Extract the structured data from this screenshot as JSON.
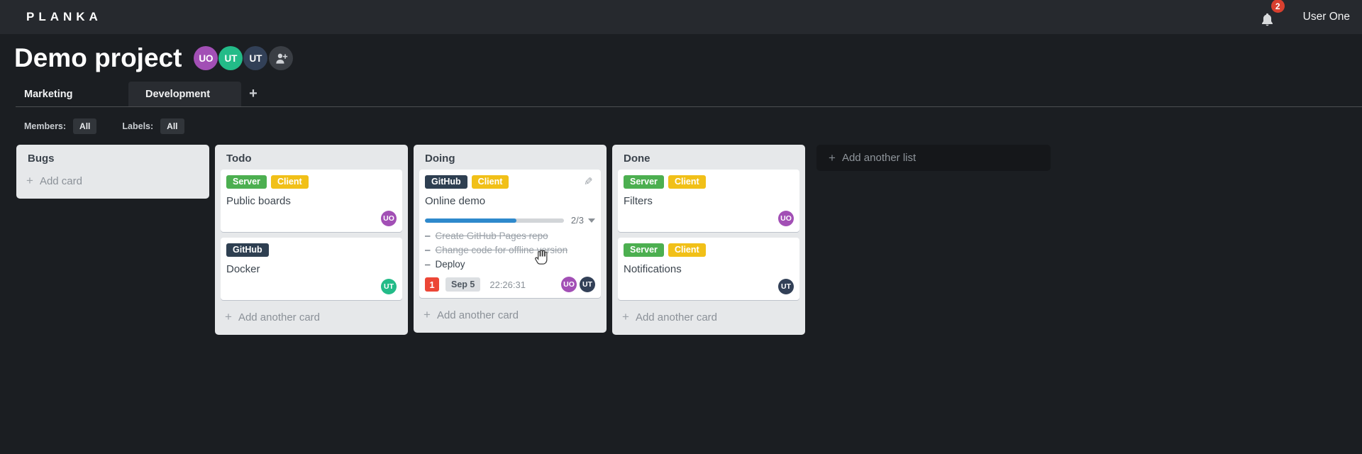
{
  "topbar": {
    "logo": "PLANKA",
    "notifications_count": "2",
    "user_name": "User One"
  },
  "project": {
    "title": "Demo project",
    "members": [
      {
        "initials": "UO",
        "color": "#a24fb5"
      },
      {
        "initials": "UT",
        "color": "#23bb88"
      },
      {
        "initials": "UT",
        "color": "#324057"
      }
    ]
  },
  "tabs": {
    "items": [
      {
        "label": "Marketing",
        "active": false
      },
      {
        "label": "Development",
        "active": true
      }
    ],
    "add_icon": "+"
  },
  "filterbar": {
    "members_label": "Members:",
    "members_value": "All",
    "labels_label": "Labels:",
    "labels_value": "All"
  },
  "board": {
    "task_bullet": "–",
    "add_list_label": "Add another list",
    "lists": [
      {
        "name": "Bugs",
        "add_label": "Add card"
      },
      {
        "name": "Todo",
        "add_label": "Add another card",
        "cards": [
          {
            "title": "Public boards",
            "labels": [
              {
                "text": "Server",
                "color": "#4caf50"
              },
              {
                "text": "Client",
                "color": "#f1c018"
              }
            ],
            "members": [
              {
                "initials": "UO",
                "color": "#a24fb5"
              }
            ]
          },
          {
            "title": "Docker",
            "labels": [
              {
                "text": "GitHub",
                "color": "#2e3f51"
              }
            ],
            "members": [
              {
                "initials": "UT",
                "color": "#23bb88"
              }
            ]
          }
        ]
      },
      {
        "name": "Doing",
        "add_label": "Add another card",
        "cards": [
          {
            "title": "Online demo",
            "labels": [
              {
                "text": "GitHub",
                "color": "#2e3f51"
              },
              {
                "text": "Client",
                "color": "#f1c018"
              }
            ],
            "progress": {
              "percent": 66,
              "label": "2/3"
            },
            "tasks": [
              {
                "text": "Create GitHub Pages repo",
                "done": true
              },
              {
                "text": "Change code for offline version",
                "done": true
              },
              {
                "text": "Deploy",
                "done": false
              }
            ],
            "notifications_count": "1",
            "due_date": "Sep 5",
            "timer": "22:26:31",
            "members": [
              {
                "initials": "UO",
                "color": "#a24fb5"
              },
              {
                "initials": "UT",
                "color": "#324057"
              }
            ]
          }
        ]
      },
      {
        "name": "Done",
        "add_label": "Add another card",
        "cards": [
          {
            "title": "Filters",
            "labels": [
              {
                "text": "Server",
                "color": "#4caf50"
              },
              {
                "text": "Client",
                "color": "#f1c018"
              }
            ],
            "members": [
              {
                "initials": "UO",
                "color": "#a24fb5"
              }
            ]
          },
          {
            "title": "Notifications",
            "labels": [
              {
                "text": "Server",
                "color": "#4caf50"
              },
              {
                "text": "Client",
                "color": "#f1c018"
              }
            ],
            "members": [
              {
                "initials": "UT",
                "color": "#324057"
              }
            ]
          }
        ]
      }
    ]
  }
}
